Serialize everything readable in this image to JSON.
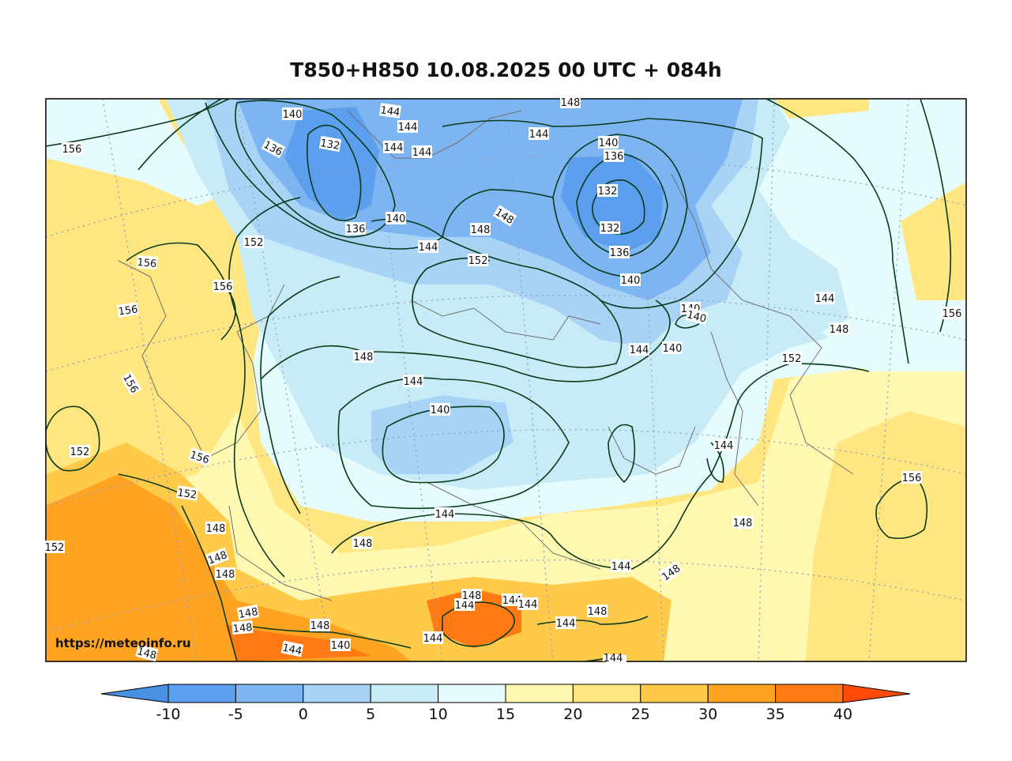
{
  "title": "T850+H850 10.08.2025 00 UTC + 084h",
  "watermark": "https://meteoinfo.ru",
  "colorbar": {
    "ticks": [
      "-10",
      "-5",
      "0",
      "5",
      "10",
      "15",
      "20",
      "25",
      "30",
      "35",
      "40"
    ],
    "colors": {
      "below": "#4a90e2",
      "bins": [
        "#5b9fee",
        "#7db5f3",
        "#a9d3f5",
        "#c8ecf7",
        "#e5fbfc",
        "#fff8b0",
        "#ffe680",
        "#ffc94a",
        "#ffa322",
        "#ff7a12"
      ],
      "above": "#ff4a0a"
    }
  },
  "contour_labels": [
    {
      "text": "140"
    },
    {
      "text": "144"
    },
    {
      "text": "144"
    },
    {
      "text": "144"
    },
    {
      "text": "144"
    },
    {
      "text": "148"
    },
    {
      "text": "144"
    },
    {
      "text": "156"
    },
    {
      "text": "136"
    },
    {
      "text": "132"
    },
    {
      "text": "140"
    },
    {
      "text": "136"
    },
    {
      "text": "132"
    },
    {
      "text": "136"
    },
    {
      "text": "132"
    },
    {
      "text": "136"
    },
    {
      "text": "140"
    },
    {
      "text": "140"
    },
    {
      "text": "148"
    },
    {
      "text": "148"
    },
    {
      "text": "144"
    },
    {
      "text": "152"
    },
    {
      "text": "152"
    },
    {
      "text": "156"
    },
    {
      "text": "156"
    },
    {
      "text": "156"
    },
    {
      "text": "156"
    },
    {
      "text": "140"
    },
    {
      "text": "140"
    },
    {
      "text": "144"
    },
    {
      "text": "140"
    },
    {
      "text": "144"
    },
    {
      "text": "148"
    },
    {
      "text": "152"
    },
    {
      "text": "156"
    },
    {
      "text": "148"
    },
    {
      "text": "144"
    },
    {
      "text": "140"
    },
    {
      "text": "152"
    },
    {
      "text": "156"
    },
    {
      "text": "152"
    },
    {
      "text": "152"
    },
    {
      "text": "148"
    },
    {
      "text": "148"
    },
    {
      "text": "148"
    },
    {
      "text": "148"
    },
    {
      "text": "148"
    },
    {
      "text": "148"
    },
    {
      "text": "148"
    },
    {
      "text": "148"
    },
    {
      "text": "144"
    },
    {
      "text": "144"
    },
    {
      "text": "148"
    },
    {
      "text": "148"
    },
    {
      "text": "144"
    },
    {
      "text": "144"
    },
    {
      "text": "148"
    },
    {
      "text": "148"
    },
    {
      "text": "144"
    },
    {
      "text": "144"
    },
    {
      "text": "144"
    },
    {
      "text": "140"
    },
    {
      "text": "144"
    },
    {
      "text": "144"
    },
    {
      "text": "156"
    },
    {
      "text": "148"
    },
    {
      "text": "148"
    },
    {
      "text": "144"
    }
  ]
}
